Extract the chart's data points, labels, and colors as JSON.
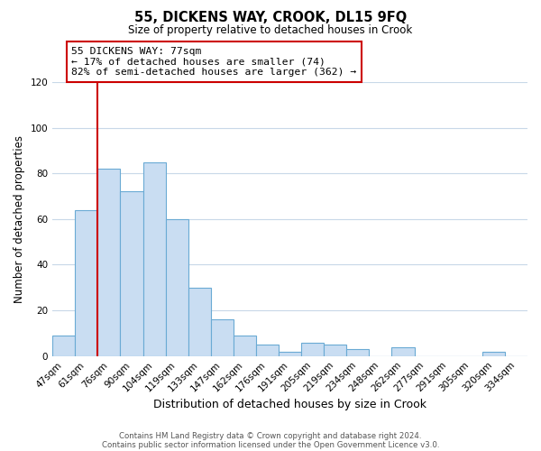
{
  "title": "55, DICKENS WAY, CROOK, DL15 9FQ",
  "subtitle": "Size of property relative to detached houses in Crook",
  "xlabel": "Distribution of detached houses by size in Crook",
  "ylabel": "Number of detached properties",
  "bar_labels": [
    "47sqm",
    "61sqm",
    "76sqm",
    "90sqm",
    "104sqm",
    "119sqm",
    "133sqm",
    "147sqm",
    "162sqm",
    "176sqm",
    "191sqm",
    "205sqm",
    "219sqm",
    "234sqm",
    "248sqm",
    "262sqm",
    "277sqm",
    "291sqm",
    "305sqm",
    "320sqm",
    "334sqm"
  ],
  "bar_values": [
    9,
    64,
    82,
    72,
    85,
    60,
    30,
    16,
    9,
    5,
    2,
    6,
    5,
    3,
    0,
    4,
    0,
    0,
    0,
    2,
    0
  ],
  "bar_color": "#c9ddf2",
  "bar_edge_color": "#6aaad4",
  "vline_index": 2,
  "vline_color": "#cc0000",
  "ylim": [
    0,
    120
  ],
  "yticks": [
    0,
    20,
    40,
    60,
    80,
    100,
    120
  ],
  "annotation_title": "55 DICKENS WAY: 77sqm",
  "annotation_line1": "← 17% of detached houses are smaller (74)",
  "annotation_line2": "82% of semi-detached houses are larger (362) →",
  "annotation_box_color": "#ffffff",
  "annotation_box_edge": "#cc0000",
  "footer_line1": "Contains HM Land Registry data © Crown copyright and database right 2024.",
  "footer_line2": "Contains public sector information licensed under the Open Government Licence v3.0.",
  "background_color": "#ffffff",
  "grid_color": "#c8d8e8"
}
